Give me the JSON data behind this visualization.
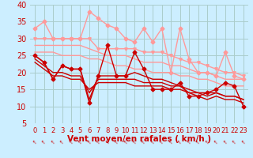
{
  "xlabel": "Vent moyen/en rafales ( km/h )",
  "bg_color": "#cceeff",
  "grid_color": "#aacccc",
  "xlim": [
    -0.5,
    23.5
  ],
  "ylim": [
    5,
    40
  ],
  "yticks": [
    5,
    10,
    15,
    20,
    25,
    30,
    35,
    40
  ],
  "xticks": [
    0,
    1,
    2,
    3,
    4,
    5,
    6,
    7,
    8,
    9,
    10,
    11,
    12,
    13,
    14,
    15,
    16,
    17,
    18,
    19,
    20,
    21,
    22,
    23
  ],
  "xtick_labels": [
    "0",
    "1",
    "2",
    "3",
    "4",
    "5",
    "6",
    "7",
    "8",
    "9",
    "10",
    "11",
    "12",
    "13",
    "14",
    "15",
    "16",
    "17",
    "18",
    "19",
    "20",
    "21",
    "22",
    "23"
  ],
  "series": [
    {
      "x": [
        0,
        1,
        2,
        3,
        4,
        5,
        6,
        7,
        8,
        9,
        10,
        11,
        12,
        13,
        14,
        15,
        16,
        17,
        18,
        19,
        20,
        21,
        22,
        23
      ],
      "y": [
        33,
        35,
        30,
        30,
        30,
        30,
        38,
        36,
        34,
        33,
        30,
        29,
        33,
        29,
        33,
        20,
        33,
        24,
        20,
        20,
        19,
        26,
        19,
        18
      ],
      "color": "#ff9999",
      "lw": 1.0,
      "marker": "D",
      "ms": 2.5
    },
    {
      "x": [
        0,
        1,
        2,
        3,
        4,
        5,
        6,
        7,
        8,
        9,
        10,
        11,
        12,
        13,
        14,
        15,
        16,
        17,
        18,
        19,
        20,
        21,
        22,
        23
      ],
      "y": [
        30,
        30,
        30,
        30,
        30,
        30,
        30,
        27,
        27,
        27,
        27,
        27,
        26,
        26,
        26,
        25,
        24,
        23,
        23,
        22,
        21,
        20,
        20,
        19
      ],
      "color": "#ff9999",
      "lw": 1.0,
      "marker": "v",
      "ms": 2.5
    },
    {
      "x": [
        0,
        1,
        2,
        3,
        4,
        5,
        6,
        7,
        8,
        9,
        10,
        11,
        12,
        13,
        14,
        15,
        16,
        17,
        18,
        19,
        20,
        21,
        22,
        23
      ],
      "y": [
        28,
        28,
        28,
        28,
        28,
        28,
        27,
        26,
        25,
        25,
        25,
        24,
        23,
        23,
        23,
        22,
        22,
        21,
        20,
        20,
        19,
        18,
        18,
        18
      ],
      "color": "#ff9999",
      "lw": 1.0,
      "marker": null,
      "ms": 0
    },
    {
      "x": [
        0,
        1,
        2,
        3,
        4,
        5,
        6,
        7,
        8,
        9,
        10,
        11,
        12,
        13,
        14,
        15,
        16,
        17,
        18,
        19,
        20,
        21,
        22,
        23
      ],
      "y": [
        26,
        26,
        26,
        25,
        25,
        25,
        24,
        24,
        23,
        22,
        22,
        21,
        21,
        20,
        20,
        20,
        19,
        19,
        18,
        18,
        17,
        16,
        16,
        16
      ],
      "color": "#ff9999",
      "lw": 1.0,
      "marker": null,
      "ms": 0
    },
    {
      "x": [
        0,
        1,
        2,
        3,
        4,
        5,
        6,
        7,
        8,
        9,
        10,
        11,
        12,
        13,
        14,
        15,
        16,
        17,
        18,
        19,
        20,
        21,
        22,
        23
      ],
      "y": [
        25,
        23,
        18,
        22,
        21,
        21,
        11,
        19,
        28,
        19,
        19,
        26,
        21,
        15,
        15,
        15,
        17,
        13,
        13,
        14,
        15,
        17,
        16,
        10
      ],
      "color": "#cc0000",
      "lw": 1.0,
      "marker": "D",
      "ms": 2.5
    },
    {
      "x": [
        0,
        1,
        2,
        3,
        4,
        5,
        6,
        7,
        8,
        9,
        10,
        11,
        12,
        13,
        14,
        15,
        16,
        17,
        18,
        19,
        20,
        21,
        22,
        23
      ],
      "y": [
        25,
        23,
        18,
        22,
        21,
        21,
        12,
        19,
        19,
        19,
        19,
        20,
        19,
        18,
        18,
        17,
        16,
        15,
        14,
        14,
        14,
        13,
        13,
        12
      ],
      "color": "#cc0000",
      "lw": 1.0,
      "marker": null,
      "ms": 0
    },
    {
      "x": [
        0,
        1,
        2,
        3,
        4,
        5,
        6,
        7,
        8,
        9,
        10,
        11,
        12,
        13,
        14,
        15,
        16,
        17,
        18,
        19,
        20,
        21,
        22,
        23
      ],
      "y": [
        24,
        22,
        20,
        20,
        19,
        19,
        14,
        18,
        18,
        18,
        18,
        18,
        17,
        17,
        17,
        16,
        16,
        14,
        14,
        13,
        14,
        13,
        13,
        12
      ],
      "color": "#cc0000",
      "lw": 1.0,
      "marker": null,
      "ms": 0
    },
    {
      "x": [
        0,
        1,
        2,
        3,
        4,
        5,
        6,
        7,
        8,
        9,
        10,
        11,
        12,
        13,
        14,
        15,
        16,
        17,
        18,
        19,
        20,
        21,
        22,
        23
      ],
      "y": [
        23,
        21,
        19,
        19,
        18,
        18,
        15,
        17,
        17,
        17,
        17,
        16,
        16,
        16,
        16,
        15,
        15,
        14,
        13,
        12,
        13,
        12,
        12,
        11
      ],
      "color": "#cc0000",
      "lw": 1.0,
      "marker": null,
      "ms": 0
    }
  ],
  "arrow_symbol": "↑",
  "arrow_color": "#cc0000",
  "xlabel_color": "#cc0000",
  "xlabel_fontsize": 7.5,
  "tick_label_color": "#cc0000",
  "tick_label_fontsize": 6,
  "ytick_label_fontsize": 7
}
